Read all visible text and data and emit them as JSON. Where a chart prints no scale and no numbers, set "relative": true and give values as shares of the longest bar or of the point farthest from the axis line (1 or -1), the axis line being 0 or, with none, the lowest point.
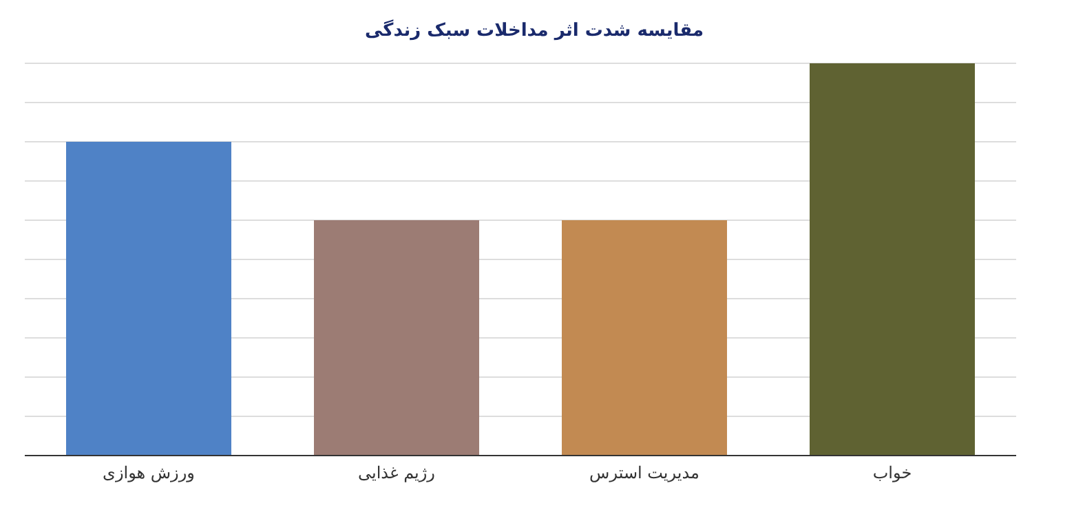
{
  "chart_data": {
    "type": "bar",
    "title": "مقایسه شدت اثر مداخلات سبک زندگی",
    "categories": [
      "ورزش هوازی",
      "رژیم غذایی",
      "مدیریت استرس",
      "خواب"
    ],
    "values": [
      0.8,
      0.6,
      0.6,
      1.0
    ],
    "colors": [
      "#4f82c6",
      "#9c7c74",
      "#c28a52",
      "#5f6232"
    ],
    "relative": true,
    "grid": "y"
  }
}
